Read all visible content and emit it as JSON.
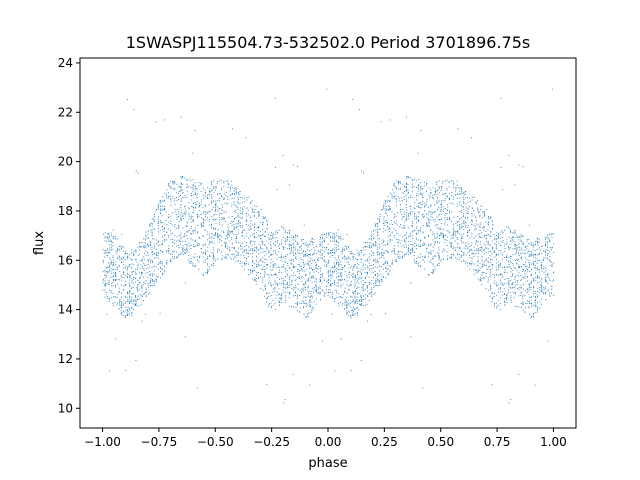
{
  "chart_data": {
    "type": "scatter",
    "title": "1SWASPJ115504.73-532502.0 Period 3701896.75s",
    "xlabel": "phase",
    "ylabel": "flux",
    "xlim": [
      -1.1,
      1.1
    ],
    "ylim": [
      9.2,
      24.2
    ],
    "xticks": [
      -1.0,
      -0.75,
      -0.5,
      -0.25,
      0.0,
      0.25,
      0.5,
      0.75,
      1.0
    ],
    "xtick_labels": [
      "−1.00",
      "−0.75",
      "−0.50",
      "−0.25",
      "0.00",
      "0.25",
      "0.50",
      "0.75",
      "1.00"
    ],
    "yticks": [
      10,
      12,
      14,
      16,
      18,
      20,
      22,
      24
    ],
    "ytick_labels": [
      "10",
      "12",
      "14",
      "16",
      "18",
      "20",
      "22",
      "24"
    ],
    "grid": false,
    "marker_color": "#1f77b4",
    "series": [
      {
        "name": "",
        "profile_phase": [
          0.0,
          0.05,
          0.1,
          0.15,
          0.2,
          0.25,
          0.3,
          0.35,
          0.4,
          0.45,
          0.5,
          0.55,
          0.6,
          0.65,
          0.7,
          0.75,
          0.8,
          0.85,
          0.9,
          0.95,
          1.0
        ],
        "profile_flux": [
          15.9,
          15.6,
          15.0,
          15.2,
          16.0,
          16.8,
          17.6,
          17.9,
          17.5,
          17.2,
          17.6,
          17.7,
          17.4,
          17.0,
          16.4,
          15.6,
          15.8,
          15.6,
          15.2,
          15.6,
          15.9
        ],
        "profile_spread": [
          1.3,
          1.5,
          1.4,
          1.3,
          1.4,
          1.6,
          1.7,
          1.6,
          1.8,
          1.9,
          1.7,
          1.6,
          1.5,
          1.6,
          1.7,
          1.7,
          1.6,
          1.5,
          1.6,
          1.4,
          1.3
        ]
      }
    ]
  }
}
